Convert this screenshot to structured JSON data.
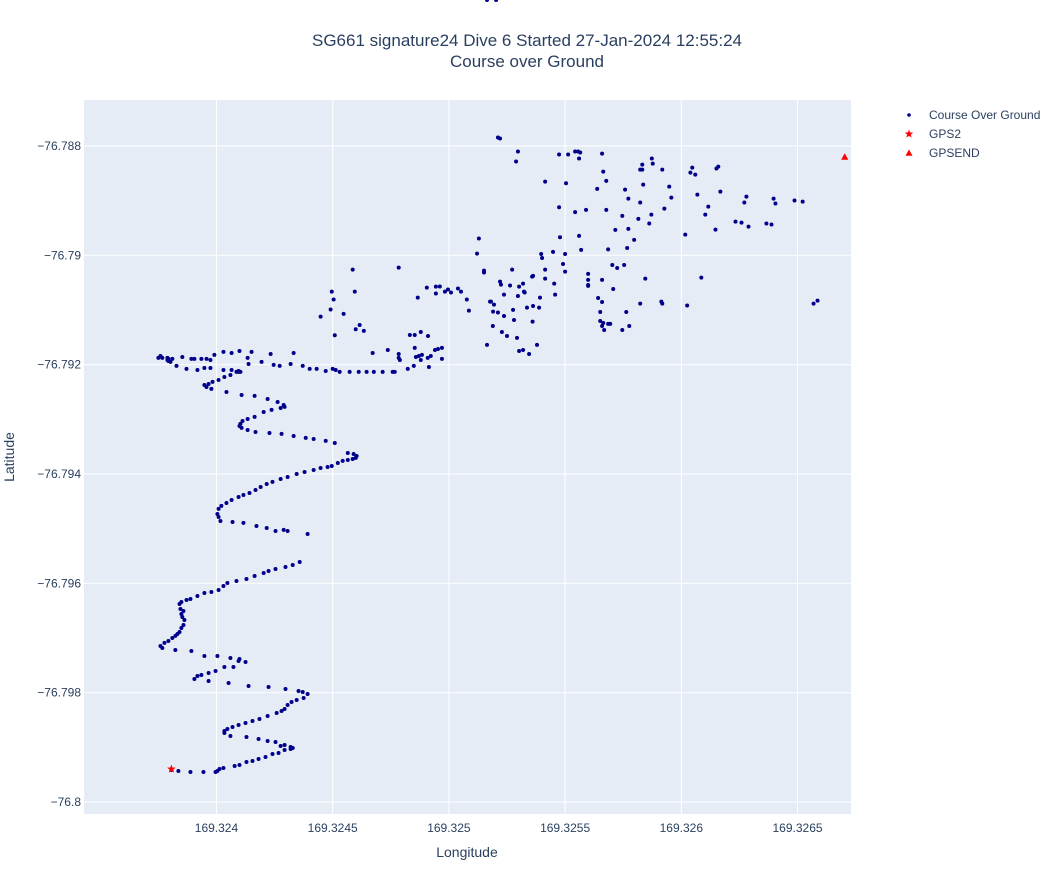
{
  "chart_data": {
    "type": "scatter",
    "title": "SG661 signature24 Dive 6 Started 27-Jan-2024 12:55:24",
    "subtitle": "Course over Ground",
    "xlabel": "Longitude",
    "ylabel": "Latitude",
    "xlim": [
      169.32343,
      169.32673
    ],
    "ylim": [
      -76.80022,
      -76.78716
    ],
    "xticks": [
      169.324,
      169.3245,
      169.325,
      169.3255,
      169.326,
      169.3265
    ],
    "xtick_labels": [
      "169.324",
      "169.3245",
      "169.325",
      "169.3255",
      "169.326",
      "169.3265"
    ],
    "yticks": [
      -76.788,
      -76.79,
      -76.792,
      -76.794,
      -76.796,
      -76.798,
      -76.8
    ],
    "ytick_labels": [
      "−76.788",
      "−76.79",
      "−76.792",
      "−76.794",
      "−76.796",
      "−76.798",
      "−76.8"
    ],
    "grid": true,
    "legend_position": "top-right",
    "colors": {
      "plot_bg": "#e5ecf6",
      "grid": "#ffffff",
      "text": "#2a3f5f"
    },
    "series": [
      {
        "name": "Course Over Ground",
        "marker": "circle",
        "color": "#00008b",
        "lon": [
          169.323806,
          169.323836,
          169.323888,
          169.323944,
          169.323996,
          169.324004,
          169.324013,
          169.32403,
          169.324078,
          169.324099,
          169.324129,
          169.324155,
          169.324181,
          169.324211,
          169.324241,
          169.324267,
          169.324293,
          169.324319,
          169.324328,
          169.324319,
          169.324293,
          169.324276,
          169.324254,
          169.32422,
          169.324181,
          169.324129,
          169.32406,
          169.324034,
          169.324034,
          169.324047,
          169.324069,
          169.324095,
          169.324125,
          169.324155,
          169.324185,
          169.32422,
          169.324259,
          169.32428,
          169.324293,
          169.324306,
          169.324323,
          169.324345,
          169.324375,
          169.324392,
          169.324371,
          169.324353,
          169.324297,
          169.324224,
          169.324138,
          169.324052,
          169.323966,
          169.323905,
          169.323918,
          169.323935,
          169.323966,
          169.323996,
          169.324034,
          169.324073,
          169.324095,
          169.324125,
          169.324099,
          169.32406,
          169.324004,
          169.323948,
          169.323892,
          169.323823,
          169.323767,
          169.323759,
          169.323776,
          169.323793,
          169.32381,
          169.323823,
          169.323832,
          169.323841,
          169.323849,
          169.323858,
          169.323862,
          169.323853,
          169.323849,
          169.323858,
          169.323845,
          169.323841,
          169.323849,
          169.323871,
          169.323888,
          169.323918,
          169.323948,
          169.323978,
          169.324009,
          169.32403,
          169.324047,
          169.324086,
          169.324129,
          169.324164,
          169.324203,
          169.324224,
          169.324254,
          169.324297,
          169.324328,
          169.324358,
          169.324392,
          169.324306,
          169.324289,
          169.324254,
          169.324216,
          169.324172,
          169.324116,
          169.324069,
          169.324017,
          169.324009,
          169.324004,
          169.324009,
          169.324021,
          169.324043,
          169.324065,
          169.324095,
          169.324116,
          169.324142,
          169.324168,
          169.32419,
          169.324216,
          169.324241,
          169.324276,
          169.324306,
          169.324345,
          169.324379,
          169.324418,
          169.324448,
          169.324478,
          169.324496,
          169.324522,
          169.324543,
          169.324565,
          169.324586,
          169.324599,
          169.324603,
          169.32459,
          169.324565,
          169.324509,
          169.32447,
          169.324418,
          169.324384,
          169.324332,
          169.32428,
          169.324228,
          169.324168,
          169.324134,
          169.324108,
          169.324099,
          169.324103,
          169.324112,
          169.324134,
          169.324164,
          169.324203,
          169.324237,
          169.324276,
          169.324293,
          169.324289,
          169.324263,
          169.32422,
          169.324164,
          169.324108,
          169.324043,
          169.323978,
          169.323957,
          169.323948,
          169.323966,
          169.323983,
          169.324009,
          169.324034,
          169.32406,
          169.324086,
          169.324095,
          169.324103,
          169.324095,
          169.324065,
          169.32403,
          169.323974,
          169.323948,
          169.323918,
          169.323871,
          169.323828,
          169.323802,
          169.323789,
          169.323793,
          169.323789,
          169.323767,
          169.323759,
          169.32375,
          169.323793,
          169.32381,
          169.323853,
          169.323892,
          169.323905,
          169.323935,
          169.323957,
          169.323974,
          169.323991,
          169.32403,
          169.324065,
          169.324099,
          169.324134,
          169.324151,
          169.324138,
          169.324194,
          169.324233,
          169.324246,
          169.324272,
          169.324319,
          169.324332,
          169.324371,
          169.324401,
          169.32447,
          169.324431,
          169.3245,
          169.324513,
          169.32453,
          169.324573,
          169.324612,
          169.324646,
          169.324677,
          169.324715,
          169.324758,
          169.324767,
          169.324823,
          169.324849,
          169.324858,
          169.324871,
          169.324884,
          169.324909,
          169.324922,
          169.32497,
          169.324983,
          169.324996,
          169.325009,
          169.324905,
          169.324944,
          169.324961,
          169.325052,
          169.325086,
          169.32519,
          169.325224,
          169.325326,
          169.32536,
          169.324448,
          169.324491,
          169.324509,
          169.324599,
          169.324634,
          169.324737,
          169.324784,
          169.324784,
          169.324832,
          169.324879,
          169.324853,
          169.32494,
          169.324953,
          169.324914,
          169.324789,
          169.324672,
          169.324853,
          169.324879,
          169.32497,
          169.32491,
          169.324616,
          169.324547,
          169.324496,
          169.324504,
          169.324595,
          169.324586,
          169.324784,
          169.324944,
          169.325039,
          169.324866,
          169.325077,
          169.325151,
          169.325177,
          169.325211,
          169.325181,
          169.325151,
          169.325121,
          169.325129,
          169.325189,
          169.325194,
          169.325237,
          169.32525,
          169.325293,
          169.325319,
          169.325379,
          169.325345,
          169.325302,
          169.325164,
          169.325228,
          169.32528,
          169.325276,
          169.325362,
          169.325297,
          169.325362,
          169.325401,
          169.325478,
          169.325474,
          169.325504,
          169.325543,
          169.32559,
          169.325569,
          169.32556,
          169.3255,
          169.325448,
          169.325397,
          169.325491,
          169.325599,
          169.325599,
          169.325642,
          169.325659,
          169.325651,
          169.325685,
          169.325694,
          169.325651,
          169.325668,
          169.325746,
          169.325776,
          169.325659,
          169.325707,
          169.325599,
          169.325599,
          169.325703,
          169.325754,
          169.325767,
          169.325772,
          169.325746,
          169.325716,
          169.325677,
          169.325638,
          169.325677,
          169.325685,
          169.325659,
          169.325664,
          169.325763,
          169.325724,
          169.325797,
          169.325815,
          169.325832,
          169.325832,
          169.325873,
          169.325877,
          169.325556,
          169.325211,
          169.32522,
          169.325297,
          169.325289,
          169.325414,
          169.325474,
          169.32556,
          169.325565,
          169.325513,
          169.325543,
          169.325659,
          169.325664,
          169.325758,
          169.325772,
          169.325823,
          169.325823,
          169.325836,
          169.325871,
          169.325862,
          169.325927,
          169.325948,
          169.325918,
          169.325957,
          169.326017,
          169.326039,
          169.326047,
          169.32606,
          169.326069,
          169.326103,
          169.326116,
          169.326151,
          169.326159,
          169.326168,
          169.326147,
          169.326233,
          169.326259,
          169.326289,
          169.32628,
          169.326271,
          169.326366,
          169.326388,
          169.326397,
          169.326405,
          169.326487,
          169.326522,
          169.326569,
          169.326586,
          169.326025,
          169.325918,
          169.325914,
          169.325823,
          169.326086,
          169.325845,
          169.32522,
          169.325302,
          169.325392,
          169.325414,
          169.3255,
          169.325319,
          169.325237,
          169.325263,
          169.325336,
          169.325388,
          169.325323,
          169.325457,
          169.325453,
          169.325358,
          169.325414,
          169.325272,
          169.325203,
          169.325164
        ],
        "lat": [
          -76.799415,
          -76.799433,
          -76.799452,
          -76.799452,
          -76.799452,
          -76.799433,
          -76.799397,
          -76.799379,
          -76.799342,
          -76.799324,
          -76.799269,
          -76.799251,
          -76.799214,
          -76.799177,
          -76.799123,
          -76.799104,
          -76.799049,
          -76.799031,
          -76.799013,
          -76.798994,
          -76.798958,
          -76.798976,
          -76.798903,
          -76.798885,
          -76.798848,
          -76.798812,
          -76.798793,
          -76.798738,
          -76.798702,
          -76.798665,
          -76.798629,
          -76.798592,
          -76.798555,
          -76.798519,
          -76.798482,
          -76.798427,
          -76.798372,
          -76.798336,
          -76.798299,
          -76.798226,
          -76.798171,
          -76.798135,
          -76.798098,
          -76.798025,
          -76.797988,
          -76.79797,
          -76.797933,
          -76.797897,
          -76.797878,
          -76.797823,
          -76.797787,
          -76.79775,
          -76.797695,
          -76.797677,
          -76.79764,
          -76.797604,
          -76.797531,
          -76.797531,
          -76.797421,
          -76.797439,
          -76.797384,
          -76.797366,
          -76.797329,
          -76.797329,
          -76.797238,
          -76.79722,
          -76.797183,
          -76.797146,
          -76.797091,
          -76.797055,
          -76.797,
          -76.796963,
          -76.796927,
          -76.79689,
          -76.796817,
          -76.796762,
          -76.796671,
          -76.796616,
          -76.796561,
          -76.796506,
          -76.79647,
          -76.796378,
          -76.796342,
          -76.796305,
          -76.796287,
          -76.796232,
          -76.796177,
          -76.796159,
          -76.796122,
          -76.796049,
          -76.795994,
          -76.795957,
          -76.795921,
          -76.795866,
          -76.795811,
          -76.795775,
          -76.795738,
          -76.795702,
          -76.795665,
          -76.79561,
          -76.795098,
          -76.795043,
          -76.795024,
          -76.795043,
          -76.794988,
          -76.794951,
          -76.794896,
          -76.794878,
          -76.79486,
          -76.794787,
          -76.794732,
          -76.79464,
          -76.794585,
          -76.794531,
          -76.794476,
          -76.794421,
          -76.794384,
          -76.794348,
          -76.794293,
          -76.794238,
          -76.794183,
          -76.794146,
          -76.794092,
          -76.794055,
          -76.794,
          -76.793964,
          -76.793927,
          -76.793891,
          -76.793872,
          -76.793854,
          -76.793799,
          -76.793762,
          -76.793744,
          -76.793726,
          -76.793707,
          -76.793671,
          -76.793634,
          -76.793616,
          -76.793433,
          -76.793396,
          -76.79336,
          -76.793341,
          -76.793305,
          -76.793268,
          -76.79325,
          -76.793232,
          -76.793195,
          -76.793158,
          -76.793122,
          -76.793085,
          -76.793031,
          -76.792994,
          -76.792957,
          -76.792866,
          -76.792829,
          -76.792793,
          -76.792774,
          -76.792738,
          -76.792683,
          -76.792628,
          -76.792573,
          -76.792555,
          -76.7925,
          -76.792445,
          -76.792409,
          -76.792372,
          -76.792354,
          -76.792317,
          -76.792281,
          -76.792226,
          -76.792189,
          -76.792134,
          -76.792134,
          -76.792134,
          -76.792116,
          -76.792098,
          -76.792098,
          -76.792061,
          -76.792061,
          -76.792098,
          -76.792079,
          -76.792024,
          -76.791951,
          -76.791915,
          -76.791896,
          -76.791878,
          -76.791878,
          -76.791842,
          -76.791878,
          -76.791933,
          -76.791896,
          -76.79186,
          -76.791896,
          -76.791896,
          -76.791896,
          -76.791896,
          -76.791915,
          -76.791823,
          -76.791768,
          -76.791787,
          -76.79175,
          -76.791878,
          -76.791768,
          -76.791988,
          -76.791951,
          -76.791805,
          -76.792006,
          -76.792024,
          -76.791988,
          -76.791787,
          -76.792024,
          -76.792079,
          -76.792116,
          -76.792079,
          -76.792079,
          -76.792098,
          -76.792134,
          -76.792134,
          -76.792134,
          -76.792134,
          -76.792134,
          -76.792134,
          -76.792134,
          -76.792134,
          -76.792079,
          -76.792024,
          -76.79186,
          -76.791842,
          -76.791823,
          -76.791878,
          -76.791842,
          -76.791896,
          -76.790664,
          -76.790627,
          -76.790682,
          -76.790591,
          -76.7907,
          -76.790572,
          -76.790664,
          -76.791012,
          -76.79103,
          -76.790536,
          -76.790682,
          -76.791213,
          -76.791122,
          -76.790993,
          -76.791463,
          -76.791353,
          -76.791384,
          -76.791732,
          -76.791878,
          -76.791805,
          -76.791458,
          -76.791403,
          -76.791458,
          -76.791732,
          -76.791714,
          -76.792043,
          -76.791915,
          -76.791787,
          -76.791695,
          -76.791915,
          -76.791695,
          -76.791476,
          -76.791275,
          -76.791073,
          -76.790664,
          -76.79081,
          -76.790664,
          -76.790262,
          -76.790225,
          -76.790573,
          -76.790609,
          -76.790774,
          -76.79081,
          -76.79028,
          -76.790847,
          -76.791048,
          -76.790847,
          -76.790316,
          -76.789969,
          -76.789694,
          -76.791293,
          -76.790902,
          -76.79111,
          -76.791476,
          -76.791512,
          -76.791732,
          -76.79164,
          -76.791805,
          -76.79175,
          -76.79164,
          -76.791403,
          -76.791183,
          -76.791,
          -76.790927,
          -76.790744,
          -76.790378,
          -76.790049,
          -76.78967,
          -76.789121,
          -76.788682,
          -76.789212,
          -76.78917,
          -76.789902,
          -76.789646,
          -76.789976,
          -76.789939,
          -76.789976,
          -76.790159,
          -76.790341,
          -76.790543,
          -76.790781,
          -76.790855,
          -76.791037,
          -76.791256,
          -76.791256,
          -76.791202,
          -76.791366,
          -76.791366,
          -76.791293,
          -76.791293,
          -76.790616,
          -76.790561,
          -76.790451,
          -76.790177,
          -76.790177,
          -76.789866,
          -76.789518,
          -76.78928,
          -76.789536,
          -76.78917,
          -76.788786,
          -76.78864,
          -76.789893,
          -76.790451,
          -76.791238,
          -76.791037,
          -76.790232,
          -76.789719,
          -76.789335,
          -76.788341,
          -76.788433,
          -76.788231,
          -76.788323,
          -76.788103,
          -76.787846,
          -76.787865,
          -76.788103,
          -76.788286,
          -76.788652,
          -76.788158,
          -76.788231,
          -76.788121,
          -76.788158,
          -76.788103,
          -76.78814,
          -76.788469,
          -76.788799,
          -76.788963,
          -76.789036,
          -76.788433,
          -76.788707,
          -76.789256,
          -76.78942,
          -76.789146,
          -76.788744,
          -76.788433,
          -76.788945,
          -76.789622,
          -76.788488,
          -76.788397,
          -76.788524,
          -76.78889,
          -76.789256,
          -76.78911,
          -76.788414,
          -76.788378,
          -76.788835,
          -76.78953,
          -76.789384,
          -76.789402,
          -76.789475,
          -76.788927,
          -76.789036,
          -76.78942,
          -76.789438,
          -76.788963,
          -76.789054,
          -76.788999,
          -76.789018,
          -76.790884,
          -76.790829,
          -76.79092,
          -76.790884,
          -76.790847,
          -76.790884,
          -76.790409,
          -76.790427,
          -76.790482,
          -76.790573,
          -76.790774,
          -76.790427,
          -76.790299,
          -76.790518,
          -76.790719,
          -76.790554,
          -76.790957,
          -76.790957,
          -76.790664,
          -76.790719,
          -76.790518,
          -76.79039,
          -76.790262,
          -76.790262
        ]
      },
      {
        "name": "GPS2",
        "marker": "star",
        "color": "#ff0000",
        "lon": [
          169.323806
        ],
        "lat": [
          -76.799397
        ]
      },
      {
        "name": "GPSEND",
        "marker": "triangle-up",
        "color": "#ff0000",
        "lon": [
          169.326703
        ],
        "lat": [
          -76.788201
        ]
      }
    ]
  }
}
